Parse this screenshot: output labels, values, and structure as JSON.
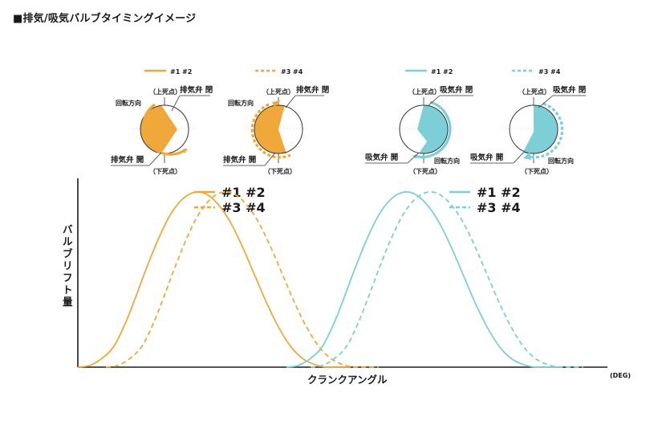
{
  "title": "■排気/吸気バルブタイミングイメージ",
  "colors": {
    "exhaust": "#f0a83a",
    "intake": "#7ccfd6",
    "ink": "#1a1a1a"
  },
  "diagrams": {
    "top_dead_center": "（上死点）",
    "bottom_dead_center": "（下死点）",
    "rotation": "回転方向",
    "exhaust_open": "排気弁 開",
    "exhaust_close": "排気弁 閉",
    "intake_open": "吸気弁 開",
    "intake_close": "吸気弁 閉",
    "cyl_12": "#1 #2",
    "cyl_34": "#3 #4"
  },
  "chart_data": {
    "type": "line",
    "xlabel": "クランクアングル",
    "xunit": "(DEG)",
    "ylabel": "バルブリフト量",
    "legend_left": [
      "#1 #2",
      "#3 #4"
    ],
    "legend_right": [
      "#1 #2",
      "#3 #4"
    ],
    "series": [
      {
        "name": "#1 #2",
        "group": "exhaust",
        "style": "solid",
        "x": [
          0,
          15,
          30,
          45,
          60,
          72,
          85,
          100,
          115,
          130,
          145,
          160,
          175,
          190,
          205,
          220,
          235,
          250,
          265,
          280,
          295,
          310,
          325,
          340
        ],
        "y": [
          0,
          0.01,
          0.05,
          0.12,
          0.26,
          0.4,
          0.56,
          0.73,
          0.87,
          0.96,
          1.0,
          0.99,
          0.93,
          0.83,
          0.69,
          0.53,
          0.37,
          0.23,
          0.12,
          0.05,
          0.015,
          0,
          0,
          0
        ]
      },
      {
        "name": "#3 #4",
        "group": "exhaust",
        "style": "dashed",
        "x": [
          35,
          50,
          65,
          80,
          95,
          107,
          120,
          135,
          150,
          165,
          180,
          195,
          210,
          225,
          240,
          255,
          270,
          285,
          300,
          315,
          330,
          345,
          360,
          375
        ],
        "y": [
          0,
          0.01,
          0.05,
          0.12,
          0.26,
          0.4,
          0.56,
          0.73,
          0.87,
          0.96,
          1.0,
          0.99,
          0.93,
          0.83,
          0.69,
          0.53,
          0.37,
          0.23,
          0.12,
          0.05,
          0.015,
          0,
          0,
          0
        ]
      },
      {
        "name": "#1 #2",
        "group": "intake",
        "style": "solid",
        "x": [
          260,
          275,
          290,
          305,
          320,
          332,
          345,
          360,
          375,
          390,
          405,
          420,
          435,
          450,
          465,
          480,
          495,
          510,
          525,
          540,
          555,
          570,
          585,
          600
        ],
        "y": [
          0,
          0.01,
          0.05,
          0.12,
          0.26,
          0.4,
          0.56,
          0.73,
          0.87,
          0.96,
          1.0,
          0.99,
          0.93,
          0.83,
          0.69,
          0.53,
          0.37,
          0.23,
          0.12,
          0.05,
          0.015,
          0,
          0,
          0
        ]
      },
      {
        "name": "#3 #4",
        "group": "intake",
        "style": "dashed",
        "x": [
          290,
          305,
          320,
          335,
          350,
          362,
          375,
          390,
          405,
          420,
          435,
          450,
          465,
          480,
          495,
          510,
          525,
          540,
          555,
          570,
          585,
          600,
          615,
          630
        ],
        "y": [
          0,
          0.01,
          0.05,
          0.12,
          0.26,
          0.4,
          0.56,
          0.73,
          0.87,
          0.96,
          1.0,
          0.99,
          0.93,
          0.83,
          0.69,
          0.53,
          0.37,
          0.23,
          0.12,
          0.05,
          0.015,
          0,
          0,
          0
        ]
      }
    ],
    "xlim": [
      0,
      660
    ],
    "ylim": [
      0,
      1.08
    ],
    "grid": false
  }
}
